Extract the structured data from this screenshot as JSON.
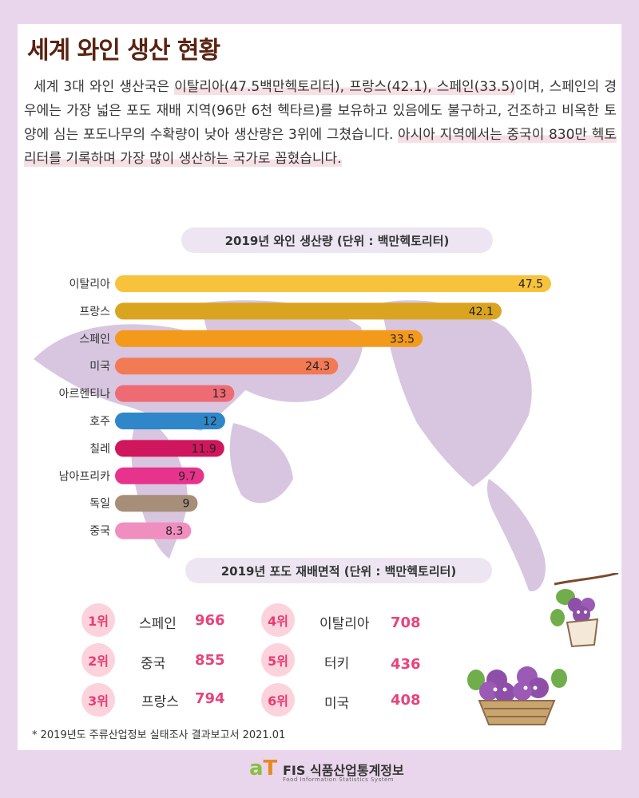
{
  "title": "세계 와인 생산 현황",
  "intro": {
    "p1": "세계 3대 와인 생산국은 ",
    "h1": "이탈리아(47.5백만헥토리터), 프랑스(42.1), 스페인(33.5)",
    "p2": "이며, 스페인의 경우에는 가장 넓은 포도 재배 지역(96만 6천 헥타르)를 보유하고 있음에도 불구하고, 건조하고 비옥한 토양에 심는 포도나무의 수확량이 낮아 생산량은 3위에 그쳤습니다. ",
    "h2": "아시아 지역에서는 중국이 830만 헥토리터를 기록하며 가장 많이 생산하는 국가로 꼽혔습니다."
  },
  "chart_data": {
    "type": "bar",
    "orientation": "horizontal",
    "title": "2019년 와인 생산량 (단위 : 백만헥토리터)",
    "categories": [
      "이탈리아",
      "프랑스",
      "스페인",
      "미국",
      "아르헨티나",
      "호주",
      "칠레",
      "남아프리카",
      "독일",
      "중국"
    ],
    "values": [
      47.5,
      42.1,
      33.5,
      24.3,
      13,
      12,
      11.9,
      9.7,
      9,
      8.3
    ],
    "labels": [
      "47.5",
      "42.1",
      "33.5",
      "24.3",
      "13",
      "12",
      "11.9",
      "9.7",
      "9",
      "8.3"
    ],
    "colors": [
      "#f8c33c",
      "#d9a521",
      "#f39a1b",
      "#f27a55",
      "#ef6b74",
      "#2f86c8",
      "#d0165c",
      "#e7338b",
      "#a68e78",
      "#f08fbf"
    ],
    "xlim": [
      0,
      47.5
    ],
    "grid": false
  },
  "area": {
    "title": "2019년 포도 재배면적 (단위 : 백만헥토리터)",
    "ranks": [
      {
        "rank": "1위",
        "name": "스페인",
        "value": "966"
      },
      {
        "rank": "2위",
        "name": "중국",
        "value": "855"
      },
      {
        "rank": "3위",
        "name": "프랑스",
        "value": "794"
      },
      {
        "rank": "4위",
        "name": "이탈리아",
        "value": "708"
      },
      {
        "rank": "5위",
        "name": "터키",
        "value": "436"
      },
      {
        "rank": "6위",
        "name": "미국",
        "value": "408"
      }
    ]
  },
  "footnote": "* 2019년도 주류산업정보 실태조사 결과보고서 2021.01",
  "footer": {
    "mark_a": "a",
    "mark_t": "T",
    "name": "FIS 식품산업통계정보",
    "sub": "Food Information Statistics System"
  },
  "icons": {
    "map": "world-map-icon",
    "grape_hanging": "hanging-grape-character-icon",
    "grape_basket": "grape-basket-characters-icon"
  }
}
